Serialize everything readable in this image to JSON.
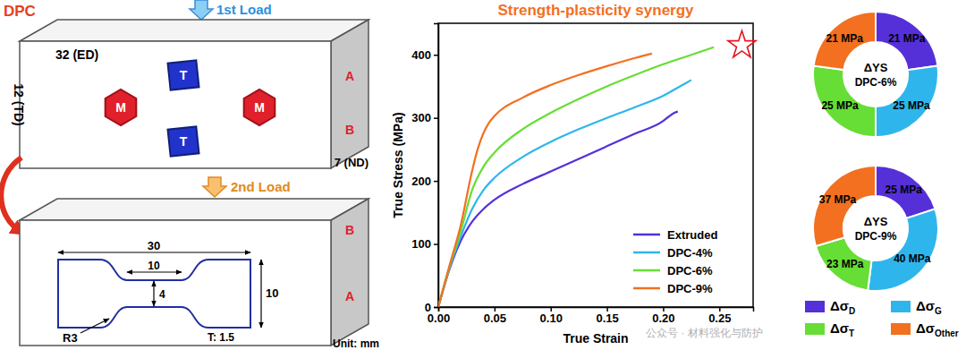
{
  "diagram": {
    "title": "DPC",
    "load1": "1st Load",
    "load2": "2nd Load",
    "box1": {
      "length": "32 (ED)",
      "height": "12 (TD)",
      "depth": "7 (ND)",
      "corner_top": "A",
      "corner_bottom": "B",
      "grains": [
        {
          "label": "M"
        },
        {
          "label": "T"
        },
        {
          "label": "T"
        },
        {
          "label": "M"
        }
      ]
    },
    "box2": {
      "corner_top": "B",
      "corner_bottom": "A",
      "specimen": {
        "length": "30",
        "gauge_length": "10",
        "gauge_width": "4",
        "width": "10",
        "radius": "R3",
        "thickness": "T: 1.5"
      },
      "unit": "Unit: mm"
    }
  },
  "watermark": "公众号 · 材料强化与防护",
  "chart_data": [
    {
      "type": "line",
      "title": "Strength-plasticity synergy",
      "x_label": "True Strain",
      "y_label": "True Stress (MPa)",
      "xlim": [
        0,
        0.28
      ],
      "ylim": [
        0,
        450
      ],
      "xticks": [
        {
          "value": 0,
          "label": "0.00"
        },
        {
          "value": 0.05,
          "label": "0.05"
        },
        {
          "value": 0.1,
          "label": "0.10"
        },
        {
          "value": 0.15,
          "label": "0.15"
        },
        {
          "value": 0.2,
          "label": "0.20"
        },
        {
          "value": 0.25,
          "label": "0.25"
        }
      ],
      "yticks": [
        0,
        100,
        200,
        300,
        400
      ],
      "legend": "lower right",
      "series": [
        {
          "name": "Extruded",
          "color": "#5530d8",
          "x": [
            0,
            0.01,
            0.02,
            0.03,
            0.04,
            0.05,
            0.075,
            0.1,
            0.125,
            0.15,
            0.175,
            0.2,
            0.205,
            0.21,
            0.213
          ],
          "values": [
            0,
            60,
            105,
            135,
            155,
            170,
            195,
            215,
            235,
            255,
            275,
            295,
            302,
            308,
            310
          ]
        },
        {
          "name": "DPC-4%",
          "color": "#2eb6ec",
          "x": [
            0,
            0.01,
            0.02,
            0.03,
            0.04,
            0.05,
            0.075,
            0.1,
            0.125,
            0.15,
            0.175,
            0.2,
            0.215,
            0.225
          ],
          "values": [
            0,
            62,
            112,
            155,
            185,
            205,
            238,
            262,
            282,
            300,
            317,
            335,
            350,
            360
          ]
        },
        {
          "name": "DPC-6%",
          "color": "#66de35",
          "x": [
            0,
            0.01,
            0.02,
            0.03,
            0.04,
            0.05,
            0.075,
            0.1,
            0.125,
            0.15,
            0.175,
            0.2,
            0.225,
            0.245
          ],
          "values": [
            0,
            64,
            120,
            185,
            222,
            245,
            282,
            308,
            330,
            350,
            368,
            385,
            400,
            412
          ]
        },
        {
          "name": "DPC-9%",
          "color": "#f2701f",
          "x": [
            0,
            0.01,
            0.02,
            0.03,
            0.035,
            0.04,
            0.045,
            0.05,
            0.075,
            0.1,
            0.125,
            0.15,
            0.175,
            0.19
          ],
          "values": [
            0,
            66,
            130,
            215,
            250,
            275,
            292,
            303,
            332,
            352,
            368,
            382,
            395,
            402
          ]
        }
      ],
      "annotations": [
        {
          "x": 0.27,
          "y": 415,
          "marker": "star",
          "color": "#e8141e"
        }
      ]
    },
    {
      "type": "donut",
      "title": "ΔYS",
      "subtitle": "DPC-6%",
      "categories": [
        "ΔσD",
        "ΔσG",
        "ΔσT",
        "ΔσOther"
      ],
      "values": [
        21,
        25,
        25,
        21
      ],
      "value_labels": [
        "21 MPa",
        "25 MPa",
        "25 MPa",
        "21 MPa"
      ],
      "colors": [
        "#5530d8",
        "#2eb6ec",
        "#66de35",
        "#f2701f"
      ],
      "data_labels": true
    },
    {
      "type": "donut",
      "title": "ΔYS",
      "subtitle": "DPC-9%",
      "categories": [
        "ΔσD",
        "ΔσG",
        "ΔσT",
        "ΔσOther"
      ],
      "values": [
        25,
        40,
        23,
        37
      ],
      "value_labels": [
        "25 MPa",
        "40 MPa",
        "23 MPa",
        "37 MPa"
      ],
      "colors": [
        "#5530d8",
        "#2eb6ec",
        "#66de35",
        "#f2701f"
      ],
      "data_labels": true,
      "legend": "bottom"
    }
  ]
}
